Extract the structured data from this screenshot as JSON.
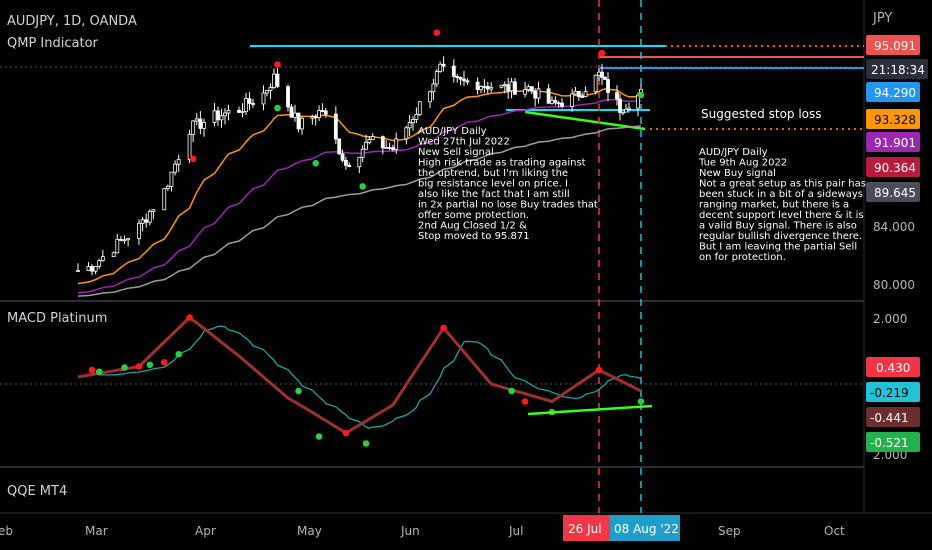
{
  "header": {
    "symbol": "AUDJPY, 1D, OANDA",
    "indicator": "QMP Indicator",
    "currency": "JPY"
  },
  "macd_panel": {
    "title": "MACD Platinum"
  },
  "qqe_panel": {
    "title": "QQE MT4"
  },
  "price_tags": [
    {
      "text": "95.091",
      "bg": "#ef5350",
      "fg": "#ffffff"
    },
    {
      "text": "21:18:34",
      "bg": "#2a2e39",
      "fg": "#ffffff"
    },
    {
      "text": "94.290",
      "bg": "#2196f3",
      "fg": "#ffffff"
    },
    {
      "text": "93.328",
      "bg": "#ff9800",
      "fg": "#000000"
    },
    {
      "text": "91.901",
      "bg": "#9c27b0",
      "fg": "#ffffff"
    },
    {
      "text": "90.364",
      "bg": "#b71c3c",
      "fg": "#ffffff"
    },
    {
      "text": "89.645",
      "bg": "#4a4d57",
      "fg": "#ffffff"
    }
  ],
  "price_axis": [
    "84.000",
    "80.000"
  ],
  "macd_tags": [
    {
      "text": "0.430",
      "bg": "#f23645",
      "fg": "#ffffff"
    },
    {
      "text": "-0.219",
      "bg": "#22c3d6",
      "fg": "#000000"
    },
    {
      "text": "-0.441",
      "bg": "#6b2d2d",
      "fg": "#ffffff"
    },
    {
      "text": "-0.521",
      "bg": "#22b14c",
      "fg": "#ffffff"
    }
  ],
  "macd_axis": [
    "2.000",
    "2.000"
  ],
  "time_axis": [
    "eb",
    "Mar",
    "Apr",
    "May",
    "Jun",
    "Jul",
    "Sep",
    "Oct"
  ],
  "time_tags": [
    {
      "text": "26 Jul",
      "bg": "#f23645"
    },
    {
      "text": "08 Aug '22",
      "bg": "#1e9ec9"
    }
  ],
  "annotations": {
    "sell": [
      "AUD/JPY Daily",
      "",
      "Wed 27th Jul 2022",
      "New Sell signal",
      "High risk trade as trading against",
      "the uptrend, but I'm liking the",
      "big resistance level on price. I",
      "also like the fact that I am still",
      "in 2x partial no lose Buy trades that",
      "offer some protection.",
      "",
      "2nd Aug Closed 1/2 &",
      "Stop moved to 95.871"
    ],
    "stop": "Suggested stop loss",
    "buy": [
      "AUD/JPY Daily",
      "",
      "Tue 9th Aug 2022",
      "New Buy signal",
      "Not a great setup as this pair has",
      "been stuck in a bit of a sideways",
      "ranging market, but there is a",
      "decent support level there & it is",
      "a valid Buy signal.  There is also",
      "regular bullish divergence there.",
      "But I am leaving the partial Sell",
      "on for protection."
    ]
  },
  "colors": {
    "background": "#000000",
    "ma_fast": "#ff9800",
    "ma_mid": "#9c27b0",
    "ma_slow": "#9e9e9e",
    "level_line": "#00e5ff",
    "trend_line": "#39ff14",
    "sell_signal": "#ff1a1a",
    "buy_signal": "#2ecc40",
    "macd": "#a03030",
    "macd_signal": "#1fa3a3"
  },
  "chart_data": {
    "type": "line",
    "symbol": "AUDJPY",
    "timeframe": "1D",
    "y_range": [
      79,
      97.5
    ],
    "levels": [
      {
        "name": "resistance",
        "value": 95.1
      },
      {
        "name": "support",
        "value": 92.4
      }
    ],
    "close": [
      {
        "x": "2022-02-25",
        "y": 81.0
      },
      {
        "x": "2022-03-01",
        "y": 81.3
      },
      {
        "x": "2022-03-07",
        "y": 82.6
      },
      {
        "x": "2022-03-14",
        "y": 84.0
      },
      {
        "x": "2022-03-21",
        "y": 86.5
      },
      {
        "x": "2022-03-28",
        "y": 90.8
      },
      {
        "x": "2022-04-04",
        "y": 91.6
      },
      {
        "x": "2022-04-11",
        "y": 92.1
      },
      {
        "x": "2022-04-18",
        "y": 93.2
      },
      {
        "x": "2022-04-21",
        "y": 94.3
      },
      {
        "x": "2022-04-28",
        "y": 91.0
      },
      {
        "x": "2022-05-05",
        "y": 92.1
      },
      {
        "x": "2022-05-12",
        "y": 88.3
      },
      {
        "x": "2022-05-19",
        "y": 89.9
      },
      {
        "x": "2022-05-26",
        "y": 89.4
      },
      {
        "x": "2022-06-02",
        "y": 92.0
      },
      {
        "x": "2022-06-09",
        "y": 94.9
      },
      {
        "x": "2022-06-13",
        "y": 94.0
      },
      {
        "x": "2022-06-20",
        "y": 93.9
      },
      {
        "x": "2022-06-27",
        "y": 93.6
      },
      {
        "x": "2022-07-05",
        "y": 93.6
      },
      {
        "x": "2022-07-12",
        "y": 92.4
      },
      {
        "x": "2022-07-19",
        "y": 93.0
      },
      {
        "x": "2022-07-26",
        "y": 94.5
      },
      {
        "x": "2022-08-02",
        "y": 92.2
      },
      {
        "x": "2022-08-09",
        "y": 93.2
      }
    ],
    "macd": [
      {
        "x": "2022-02-25",
        "y": 0.2
      },
      {
        "x": "2022-03-14",
        "y": 0.5
      },
      {
        "x": "2022-03-28",
        "y": 1.9
      },
      {
        "x": "2022-04-11",
        "y": 0.8
      },
      {
        "x": "2022-04-25",
        "y": -0.4
      },
      {
        "x": "2022-05-12",
        "y": -1.4
      },
      {
        "x": "2022-05-26",
        "y": -0.6
      },
      {
        "x": "2022-06-10",
        "y": 1.6
      },
      {
        "x": "2022-06-24",
        "y": 0.0
      },
      {
        "x": "2022-07-12",
        "y": -0.5
      },
      {
        "x": "2022-07-26",
        "y": 0.4
      },
      {
        "x": "2022-08-09",
        "y": -0.2
      }
    ],
    "signals": [
      {
        "x": "2022-07-27",
        "type": "sell"
      },
      {
        "x": "2022-08-09",
        "type": "buy"
      }
    ]
  }
}
